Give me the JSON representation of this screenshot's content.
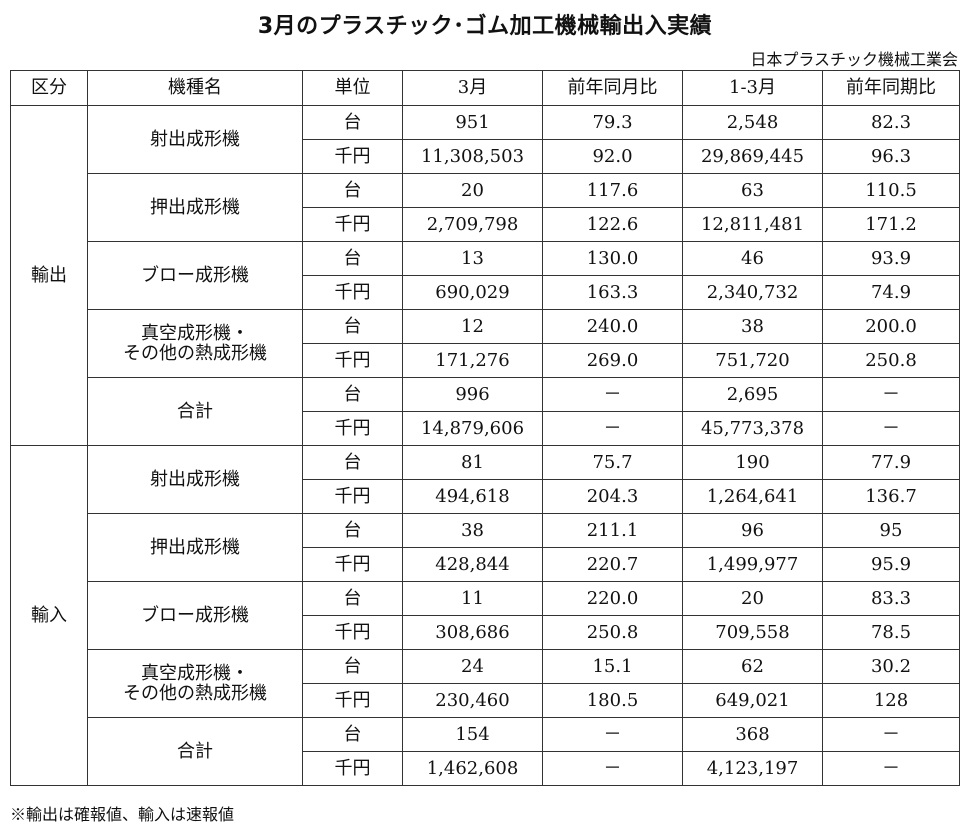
{
  "title": "3月のプラスチック･ゴム加工機械輸出入実績",
  "source": "日本プラスチック機械工業会",
  "headers": [
    "区分",
    "機種名",
    "単位",
    "3月",
    "前年同月比",
    "1-3月",
    "前年同期比"
  ],
  "sections": [
    {
      "label": "輸出",
      "machines": [
        {
          "name": "射出成形機",
          "rows": [
            {
              "unit": "台",
              "month": "951",
              "month_yoy": "79.3",
              "ytd": "2,548",
              "ytd_yoy": "82.3"
            },
            {
              "unit": "千円",
              "month": "11,308,503",
              "month_yoy": "92.0",
              "ytd": "29,869,445",
              "ytd_yoy": "96.3"
            }
          ]
        },
        {
          "name": "押出成形機",
          "rows": [
            {
              "unit": "台",
              "month": "20",
              "month_yoy": "117.6",
              "ytd": "63",
              "ytd_yoy": "110.5"
            },
            {
              "unit": "千円",
              "month": "2,709,798",
              "month_yoy": "122.6",
              "ytd": "12,811,481",
              "ytd_yoy": "171.2"
            }
          ]
        },
        {
          "name": "ブロー成形機",
          "rows": [
            {
              "unit": "台",
              "month": "13",
              "month_yoy": "130.0",
              "ytd": "46",
              "ytd_yoy": "93.9"
            },
            {
              "unit": "千円",
              "month": "690,029",
              "month_yoy": "163.3",
              "ytd": "2,340,732",
              "ytd_yoy": "74.9"
            }
          ]
        },
        {
          "name": "真空成形機・\nその他の熱成形機",
          "rows": [
            {
              "unit": "台",
              "month": "12",
              "month_yoy": "240.0",
              "ytd": "38",
              "ytd_yoy": "200.0"
            },
            {
              "unit": "千円",
              "month": "171,276",
              "month_yoy": "269.0",
              "ytd": "751,720",
              "ytd_yoy": "250.8"
            }
          ]
        },
        {
          "name": "合計",
          "rows": [
            {
              "unit": "台",
              "month": "996",
              "month_yoy": "－",
              "ytd": "2,695",
              "ytd_yoy": "－"
            },
            {
              "unit": "千円",
              "month": "14,879,606",
              "month_yoy": "－",
              "ytd": "45,773,378",
              "ytd_yoy": "－"
            }
          ]
        }
      ]
    },
    {
      "label": "輸入",
      "machines": [
        {
          "name": "射出成形機",
          "rows": [
            {
              "unit": "台",
              "month": "81",
              "month_yoy": "75.7",
              "ytd": "190",
              "ytd_yoy": "77.9"
            },
            {
              "unit": "千円",
              "month": "494,618",
              "month_yoy": "204.3",
              "ytd": "1,264,641",
              "ytd_yoy": "136.7"
            }
          ]
        },
        {
          "name": "押出成形機",
          "rows": [
            {
              "unit": "台",
              "month": "38",
              "month_yoy": "211.1",
              "ytd": "96",
              "ytd_yoy": "95"
            },
            {
              "unit": "千円",
              "month": "428,844",
              "month_yoy": "220.7",
              "ytd": "1,499,977",
              "ytd_yoy": "95.9"
            }
          ]
        },
        {
          "name": "ブロー成形機",
          "rows": [
            {
              "unit": "台",
              "month": "11",
              "month_yoy": "220.0",
              "ytd": "20",
              "ytd_yoy": "83.3"
            },
            {
              "unit": "千円",
              "month": "308,686",
              "month_yoy": "250.8",
              "ytd": "709,558",
              "ytd_yoy": "78.5"
            }
          ]
        },
        {
          "name": "真空成形機・\nその他の熱成形機",
          "rows": [
            {
              "unit": "台",
              "month": "24",
              "month_yoy": "15.1",
              "ytd": "62",
              "ytd_yoy": "30.2"
            },
            {
              "unit": "千円",
              "month": "230,460",
              "month_yoy": "180.5",
              "ytd": "649,021",
              "ytd_yoy": "128"
            }
          ]
        },
        {
          "name": "合計",
          "rows": [
            {
              "unit": "台",
              "month": "154",
              "month_yoy": "－",
              "ytd": "368",
              "ytd_yoy": "－"
            },
            {
              "unit": "千円",
              "month": "1,462,608",
              "month_yoy": "－",
              "ytd": "4,123,197",
              "ytd_yoy": "－"
            }
          ]
        }
      ]
    }
  ],
  "footnote": "※輸出は確報値、輸入は速報値"
}
